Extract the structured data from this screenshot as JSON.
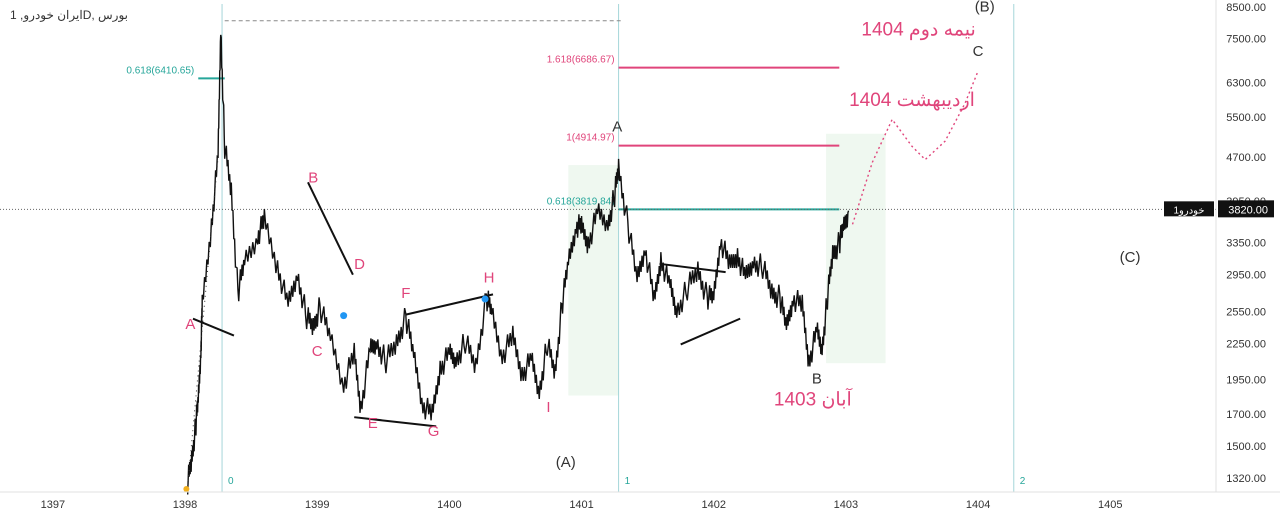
{
  "header": {
    "symbol_title": "ایران خودرو, 1D, بورس"
  },
  "chart_data": {
    "type": "line",
    "title": "",
    "xlabel": "",
    "ylabel": "",
    "y_scale": "log",
    "ylim": [
      1250,
      8600
    ],
    "xlim": [
      1396.6,
      1405.8
    ],
    "x_ticks": [
      "1397",
      "1398",
      "1399",
      "1400",
      "1401",
      "1402",
      "1403",
      "1404",
      "1405"
    ],
    "y_ticks": [
      "8500.00",
      "7500.00",
      "6300.00",
      "5500.00",
      "4700.00",
      "3950.00",
      "3350.00",
      "2950.00",
      "2550.00",
      "2250.00",
      "1950.00",
      "1700.00",
      "1500.00",
      "1320.00"
    ],
    "last_price": "3820.00",
    "last_price_symbol": "خودرو1",
    "series": [
      {
        "values_x": [
          1398.02,
          1398.05,
          1398.08,
          1398.1,
          1398.12,
          1398.13,
          1398.2,
          1398.25,
          1398.27,
          1398.3,
          1398.35,
          1398.4,
          1398.45,
          1398.55,
          1398.6,
          1398.7,
          1398.78,
          1398.85,
          1398.92,
          1398.97,
          1399.02,
          1399.1,
          1399.2,
          1399.28,
          1399.33,
          1399.4,
          1399.45,
          1399.52,
          1399.6,
          1399.67,
          1399.73,
          1399.8,
          1399.87,
          1399.93,
          1400.0,
          1400.05,
          1400.12,
          1400.2,
          1400.28,
          1400.32,
          1400.4,
          1400.48,
          1400.55,
          1400.62,
          1400.68,
          1400.74,
          1400.8,
          1400.85,
          1400.9,
          1400.96,
          1401.0,
          1401.05,
          1401.12,
          1401.2,
          1401.25,
          1401.28,
          1401.35,
          1401.42,
          1401.48,
          1401.55,
          1401.6,
          1401.67,
          1401.72,
          1401.8,
          1401.88,
          1401.95,
          1402.0,
          1402.05,
          1402.12,
          1402.18,
          1402.24,
          1402.3,
          1402.37,
          1402.44,
          1402.5,
          1402.55,
          1402.6,
          1402.67,
          1402.72,
          1402.78,
          1402.82,
          1402.86,
          1402.9,
          1402.95,
          1402.98,
          1403.02
        ],
        "values_y": [
          1300,
          1420,
          1620,
          1800,
          2200,
          2600,
          3600,
          4700,
          7800,
          4900,
          4100,
          2750,
          3100,
          3450,
          3650,
          3050,
          2600,
          2950,
          2500,
          2400,
          2600,
          2300,
          1920,
          2150,
          1750,
          2180,
          2250,
          2100,
          2250,
          2500,
          2150,
          1770,
          1690,
          2050,
          2150,
          2100,
          2270,
          2050,
          2700,
          2550,
          2150,
          2300,
          2000,
          2100,
          1850,
          2250,
          2000,
          2600,
          3100,
          3600,
          3550,
          3350,
          3750,
          3600,
          4050,
          4500,
          3600,
          2900,
          3300,
          2650,
          3150,
          2800,
          2550,
          2800,
          3000,
          2700,
          2700,
          3400,
          3050,
          3200,
          2900,
          3100,
          3050,
          2750,
          2700,
          2400,
          2700,
          2600,
          2100,
          2350,
          2200,
          2700,
          3200,
          3350,
          3550,
          3800
        ]
      }
    ],
    "wave_labels": [
      {
        "text": "A",
        "x": 1398.04,
        "y": 2380,
        "color": "#e0457b"
      },
      {
        "text": "B",
        "x": 1398.97,
        "y": 4250,
        "color": "#e0457b"
      },
      {
        "text": "C",
        "x": 1399.0,
        "y": 2140,
        "color": "#e0457b"
      },
      {
        "text": "D",
        "x": 1399.32,
        "y": 3020,
        "color": "#e0457b"
      },
      {
        "text": "E",
        "x": 1399.42,
        "y": 1610,
        "color": "#e0457b"
      },
      {
        "text": "F",
        "x": 1399.67,
        "y": 2690,
        "color": "#e0457b"
      },
      {
        "text": "G",
        "x": 1399.88,
        "y": 1560,
        "color": "#e0457b"
      },
      {
        "text": "H",
        "x": 1400.3,
        "y": 2860,
        "color": "#e0457b"
      },
      {
        "text": "I",
        "x": 1400.75,
        "y": 1715,
        "color": "#e0457b"
      },
      {
        "text": "A",
        "x": 1401.27,
        "y": 5200,
        "color": "#333333"
      },
      {
        "text": "B",
        "x": 1402.78,
        "y": 1920,
        "color": "#333333"
      },
      {
        "text": "C",
        "x": 1404.0,
        "y": 7000,
        "color": "#333333"
      },
      {
        "text": "(A)",
        "x": 1400.88,
        "y": 1380,
        "color": "#333333"
      },
      {
        "text": "(B)",
        "x": 1404.05,
        "y": 8350,
        "color": "#333333"
      },
      {
        "text": "(C)",
        "x": 1405.15,
        "y": 3100,
        "color": "#333333"
      }
    ],
    "time_labels": [
      {
        "text": "نیمه دوم 1404",
        "x": 1403.55,
        "y": 7600,
        "color": "#e0457b"
      },
      {
        "text": "اردیبهشت 1404",
        "x": 1403.5,
        "y": 5750,
        "color": "#e0457b"
      },
      {
        "text": "آبان 1403",
        "x": 1402.75,
        "y": 1760,
        "color": "#e0457b"
      }
    ],
    "fib_levels": [
      {
        "label": "0.618(6410.65)",
        "value": 6410.65,
        "x_from": 1398.1,
        "x_to": 1398.3,
        "color": "#26a69a"
      },
      {
        "label": "1.618(6686.67)",
        "value": 6686.67,
        "x_from": 1401.28,
        "x_to": 1402.95,
        "color": "#e0457b"
      },
      {
        "label": "1(4914.97)",
        "value": 4914.97,
        "x_from": 1401.28,
        "x_to": 1402.95,
        "color": "#e0457b"
      },
      {
        "label": "0.618(3819.84)",
        "value": 3819.84,
        "x_from": 1401.28,
        "x_to": 1402.95,
        "color": "#26a69a"
      }
    ],
    "cycle_labels": [
      "0",
      "1",
      "2"
    ],
    "cycle_lines_x": [
      1398.28,
      1401.28,
      1404.27
    ],
    "top_dashed_level": 8050,
    "projection": {
      "x": [
        1403.05,
        1403.2,
        1403.35,
        1403.5,
        1403.6,
        1403.75,
        1403.9,
        1404.0
      ],
      "y": [
        3600,
        4600,
        5450,
        4900,
        4650,
        5000,
        5800,
        6600
      ]
    },
    "colors": {
      "candle": "#111111",
      "wave_pink": "#e0457b",
      "fib_teal": "#26a69a",
      "zone_green": "#e8f5e9",
      "cycle_line": "#a5d6d9",
      "price_label_bg": "#111111",
      "price_label_text": "#ffffff"
    }
  }
}
